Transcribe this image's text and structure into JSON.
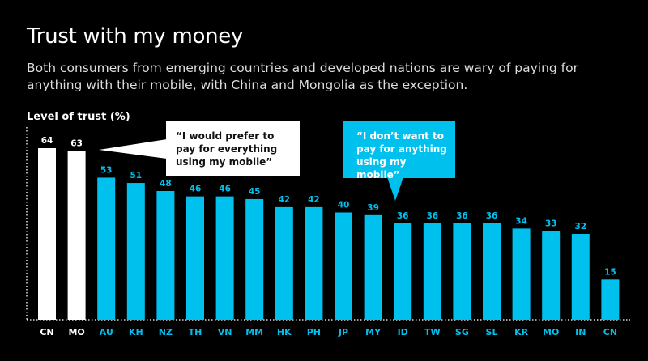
{
  "title": "Trust with my money",
  "subtitle": "Both consumers from emerging countries and developed nations are wary of paying for anything with their mobile, with China and Mongolia as the exception.",
  "colors": {
    "highlight": "#ffffff",
    "default": "#00c0ee",
    "background": "#000000"
  },
  "chart_data": {
    "type": "bar",
    "title": "Trust with my money",
    "ylabel": "Level of trust (%)",
    "xlabel": "",
    "ylim": [
      0,
      64
    ],
    "grid": false,
    "categories": [
      "CN",
      "MO",
      "AU",
      "KH",
      "NZ",
      "TH",
      "VN",
      "MM",
      "HK",
      "PH",
      "JP",
      "MY",
      "ID",
      "TW",
      "SG",
      "SL",
      "KR",
      "MO",
      "IN",
      "CN"
    ],
    "values": [
      64,
      63,
      53,
      51,
      48,
      46,
      46,
      45,
      42,
      42,
      40,
      39,
      36,
      36,
      36,
      36,
      34,
      33,
      32,
      15
    ],
    "highlighted": [
      0,
      1
    ],
    "annotations": [
      {
        "text": "“I would prefer to pay for everything using my mobile”",
        "style": "white callout",
        "points_to": "CN, MO"
      },
      {
        "text": "“I don’t want to pay for anything using my mobile”",
        "style": "cyan callout",
        "points_to": "other countries"
      }
    ]
  }
}
